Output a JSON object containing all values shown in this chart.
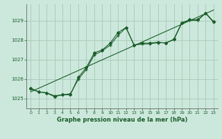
{
  "title": "Graphe pression niveau de la mer (hPa)",
  "background_color": "#cce8dc",
  "grid_color": "#aaccbb",
  "line_color": "#1a5c2a",
  "xlim": [
    -0.5,
    23.5
  ],
  "ylim": [
    1024.5,
    1029.85
  ],
  "yticks": [
    1025,
    1026,
    1027,
    1028,
    1029
  ],
  "xticks": [
    0,
    1,
    2,
    3,
    4,
    5,
    6,
    7,
    8,
    9,
    10,
    11,
    12,
    13,
    14,
    15,
    16,
    17,
    18,
    19,
    20,
    21,
    22,
    23
  ],
  "series1": {
    "x": [
      0,
      1,
      2,
      3,
      4,
      5,
      6,
      7,
      8,
      9,
      10,
      11,
      12,
      13,
      14,
      15,
      16,
      17,
      18,
      19,
      20,
      21,
      22,
      23
    ],
    "y": [
      1025.55,
      1025.35,
      1025.3,
      1025.1,
      1025.2,
      1025.2,
      1026.1,
      1026.6,
      1027.35,
      1027.5,
      1027.85,
      1028.4,
      1028.65,
      1027.75,
      1027.85,
      1027.85,
      1027.9,
      1027.85,
      1028.05,
      1028.9,
      1029.05,
      1029.05,
      1029.4,
      1028.95
    ]
  },
  "series2_linear": {
    "x": [
      0,
      23
    ],
    "y": [
      1025.35,
      1029.55
    ]
  },
  "series3": {
    "x": [
      0,
      1,
      2,
      3,
      4,
      5,
      6,
      7,
      8,
      9,
      10,
      11,
      12,
      13,
      14,
      15,
      16,
      17,
      18,
      19,
      20,
      21,
      22,
      23
    ],
    "y": [
      1025.5,
      1025.35,
      1025.3,
      1025.15,
      1025.2,
      1025.25,
      1026.0,
      1026.5,
      1027.25,
      1027.45,
      1027.75,
      1028.25,
      1028.65,
      1027.75,
      1027.8,
      1027.82,
      1027.87,
      1027.87,
      1028.02,
      1028.87,
      1029.02,
      1029.02,
      1029.38,
      1028.92
    ]
  }
}
